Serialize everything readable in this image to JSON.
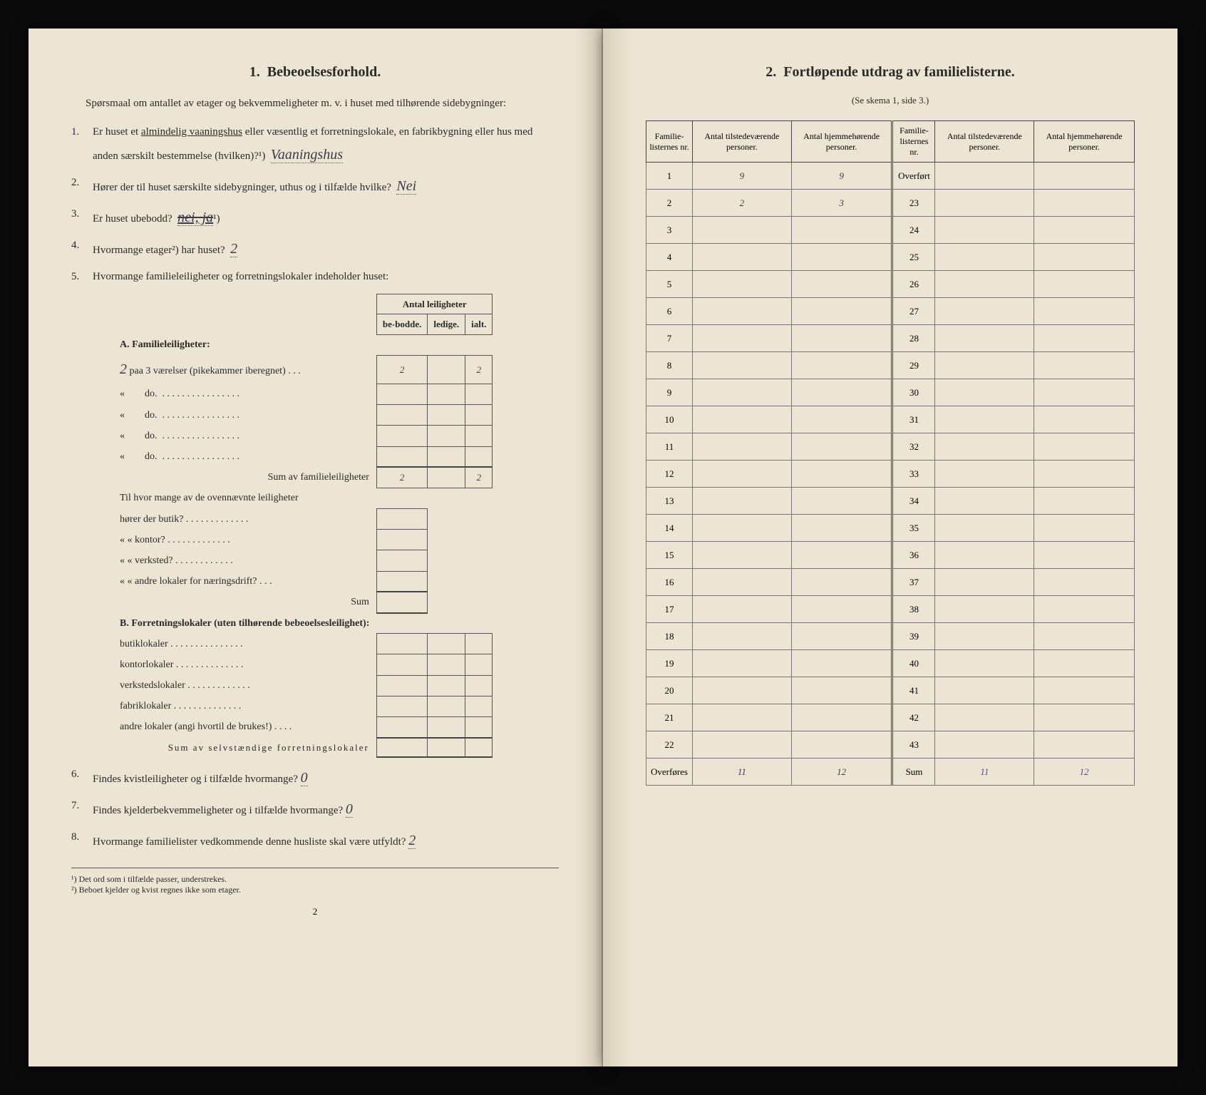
{
  "leftPage": {
    "sectionNumber": "1.",
    "sectionTitle": "Bebeoelsesforhold.",
    "intro": "Spørsmaal om antallet av etager og bekvemmeligheter m. v. i huset med tilhørende sidebygninger:",
    "q1": {
      "num": "1.",
      "text_a": "Er huset et ",
      "underlined": "almindelig vaaningshus",
      "text_b": " eller væsentlig et forretningslokale, en fabrikbygning eller hus med anden særskilt bestemmelse (hvilken)?",
      "sup": "¹)",
      "answer": "Vaaningshus"
    },
    "q2": {
      "num": "2.",
      "text": "Hører der til huset særskilte sidebygninger, uthus og i tilfælde hvilke?",
      "answer": "Nei"
    },
    "q3": {
      "num": "3.",
      "text": "Er huset ubebodd?",
      "answer": "nei, ja",
      "sup": "¹)"
    },
    "q4": {
      "num": "4.",
      "text": "Hvormange etager²) har huset?",
      "answer": "2"
    },
    "q5": {
      "num": "5.",
      "text": "Hvormange familieleiligheter og forretningslokaler indeholder huset:"
    },
    "tableHeader": {
      "main": "Antal leiligheter",
      "col1": "be-bodde.",
      "col2": "ledige.",
      "col3": "ialt."
    },
    "sectionA": {
      "label": "A. Familieleiligheter:",
      "row1_prefix": "2",
      "row1_text": "paa 3 værelser (pikekammer iberegnet)",
      "row1_v1": "2",
      "row1_v3": "2",
      "do": "do.",
      "sumLabel": "Sum av familieleiligheter",
      "sum_v1": "2",
      "sum_v3": "2",
      "subQ": "Til hvor mange av de ovennævnte leiligheter",
      "sub1": "hører der butik?",
      "sub2": "« « kontor?",
      "sub3": "« « verksted?",
      "sub4": "« « andre lokaler for næringsdrift?",
      "sumText": "Sum"
    },
    "sectionB": {
      "label": "B. Forretningslokaler (uten tilhørende bebeoelsesleilighet):",
      "r1": "butiklokaler",
      "r2": "kontorlokaler",
      "r3": "verkstedslokaler",
      "r4": "fabriklokaler",
      "r5": "andre lokaler (angi hvortil de brukes!)",
      "sumLabel": "Sum av selvstændige forretningslokaler"
    },
    "q6": {
      "num": "6.",
      "text": "Findes kvistleiligheter og i tilfælde hvormange?",
      "answer": "0"
    },
    "q7": {
      "num": "7.",
      "text": "Findes kjelderbekvemmeligheter og i tilfælde hvormange?",
      "answer": "0"
    },
    "q8": {
      "num": "8.",
      "text": "Hvormange familielister vedkommende denne husliste skal være utfyldt?",
      "answer": "2"
    },
    "footnote1": "¹) Det ord som i tilfælde passer, understrekes.",
    "footnote2": "²) Beboet kjelder og kvist regnes ikke som etager.",
    "pageNum": "2"
  },
  "rightPage": {
    "sectionNumber": "2.",
    "sectionTitle": "Fortløpende utdrag av familielisterne.",
    "subtitle": "(Se skema 1, side 3.)",
    "headers": {
      "col1": "Familie-listernes nr.",
      "col2": "Antal tilstedeværende personer.",
      "col3": "Antal hjemmehørende personer.",
      "col4": "Familie-listernes nr.",
      "col5": "Antal tilstedeværende personer.",
      "col6": "Antal hjemmehørende personer."
    },
    "leftRows": [
      {
        "nr": "1",
        "a": "9",
        "b": "9"
      },
      {
        "nr": "2",
        "a": "2",
        "b": "3"
      },
      {
        "nr": "3",
        "a": "",
        "b": ""
      },
      {
        "nr": "4",
        "a": "",
        "b": ""
      },
      {
        "nr": "5",
        "a": "",
        "b": ""
      },
      {
        "nr": "6",
        "a": "",
        "b": ""
      },
      {
        "nr": "7",
        "a": "",
        "b": ""
      },
      {
        "nr": "8",
        "a": "",
        "b": ""
      },
      {
        "nr": "9",
        "a": "",
        "b": ""
      },
      {
        "nr": "10",
        "a": "",
        "b": ""
      },
      {
        "nr": "11",
        "a": "",
        "b": ""
      },
      {
        "nr": "12",
        "a": "",
        "b": ""
      },
      {
        "nr": "13",
        "a": "",
        "b": ""
      },
      {
        "nr": "14",
        "a": "",
        "b": ""
      },
      {
        "nr": "15",
        "a": "",
        "b": ""
      },
      {
        "nr": "16",
        "a": "",
        "b": ""
      },
      {
        "nr": "17",
        "a": "",
        "b": ""
      },
      {
        "nr": "18",
        "a": "",
        "b": ""
      },
      {
        "nr": "19",
        "a": "",
        "b": ""
      },
      {
        "nr": "20",
        "a": "",
        "b": ""
      },
      {
        "nr": "21",
        "a": "",
        "b": ""
      },
      {
        "nr": "22",
        "a": "",
        "b": ""
      }
    ],
    "rightRows": [
      {
        "nr": "Overført",
        "a": "",
        "b": ""
      },
      {
        "nr": "23",
        "a": "",
        "b": ""
      },
      {
        "nr": "24",
        "a": "",
        "b": ""
      },
      {
        "nr": "25",
        "a": "",
        "b": ""
      },
      {
        "nr": "26",
        "a": "",
        "b": ""
      },
      {
        "nr": "27",
        "a": "",
        "b": ""
      },
      {
        "nr": "28",
        "a": "",
        "b": ""
      },
      {
        "nr": "29",
        "a": "",
        "b": ""
      },
      {
        "nr": "30",
        "a": "",
        "b": ""
      },
      {
        "nr": "31",
        "a": "",
        "b": ""
      },
      {
        "nr": "32",
        "a": "",
        "b": ""
      },
      {
        "nr": "33",
        "a": "",
        "b": ""
      },
      {
        "nr": "34",
        "a": "",
        "b": ""
      },
      {
        "nr": "35",
        "a": "",
        "b": ""
      },
      {
        "nr": "36",
        "a": "",
        "b": ""
      },
      {
        "nr": "37",
        "a": "",
        "b": ""
      },
      {
        "nr": "38",
        "a": "",
        "b": ""
      },
      {
        "nr": "39",
        "a": "",
        "b": ""
      },
      {
        "nr": "40",
        "a": "",
        "b": ""
      },
      {
        "nr": "41",
        "a": "",
        "b": ""
      },
      {
        "nr": "42",
        "a": "",
        "b": ""
      },
      {
        "nr": "43",
        "a": "",
        "b": ""
      }
    ],
    "footerLeft": {
      "label": "Overføres",
      "a": "11",
      "b": "12"
    },
    "footerRight": {
      "label": "Sum",
      "a": "11",
      "b": "12"
    }
  }
}
